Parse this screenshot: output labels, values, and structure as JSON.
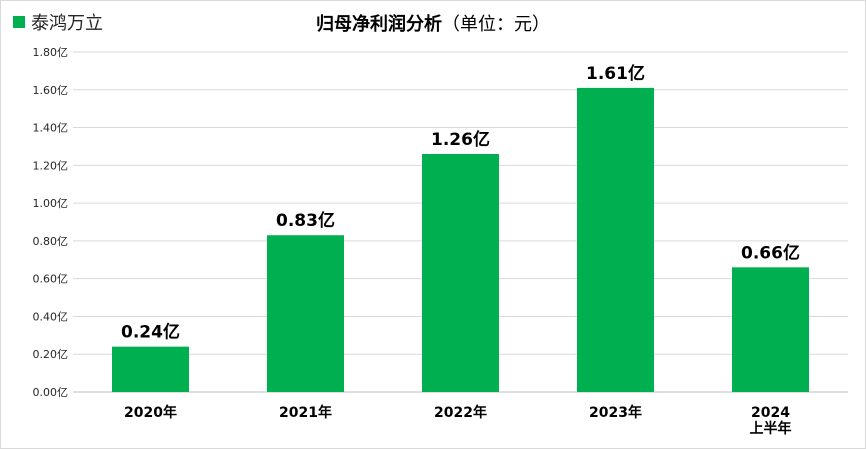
{
  "chart_data": {
    "type": "bar",
    "title": "归母净利润分析",
    "subtitle": "（单位：元）",
    "categories": [
      "2020年",
      "2021年",
      "2022年",
      "2023年",
      "2024 上半年"
    ],
    "series": [
      {
        "name": "泰鸿万立",
        "values": [
          0.24,
          0.83,
          1.26,
          1.61,
          0.66
        ],
        "color": "#00b050"
      }
    ],
    "data_labels": [
      "0.24亿",
      "0.83亿",
      "1.26亿",
      "1.61亿",
      "0.66亿"
    ],
    "y_ticks": [
      "0.00亿",
      "0.20亿",
      "0.40亿",
      "0.60亿",
      "0.80亿",
      "1.00亿",
      "1.20亿",
      "1.40亿",
      "1.60亿",
      "1.80亿"
    ],
    "ylim": [
      0,
      1.8
    ],
    "grid": true,
    "legend_position": "top-left"
  }
}
